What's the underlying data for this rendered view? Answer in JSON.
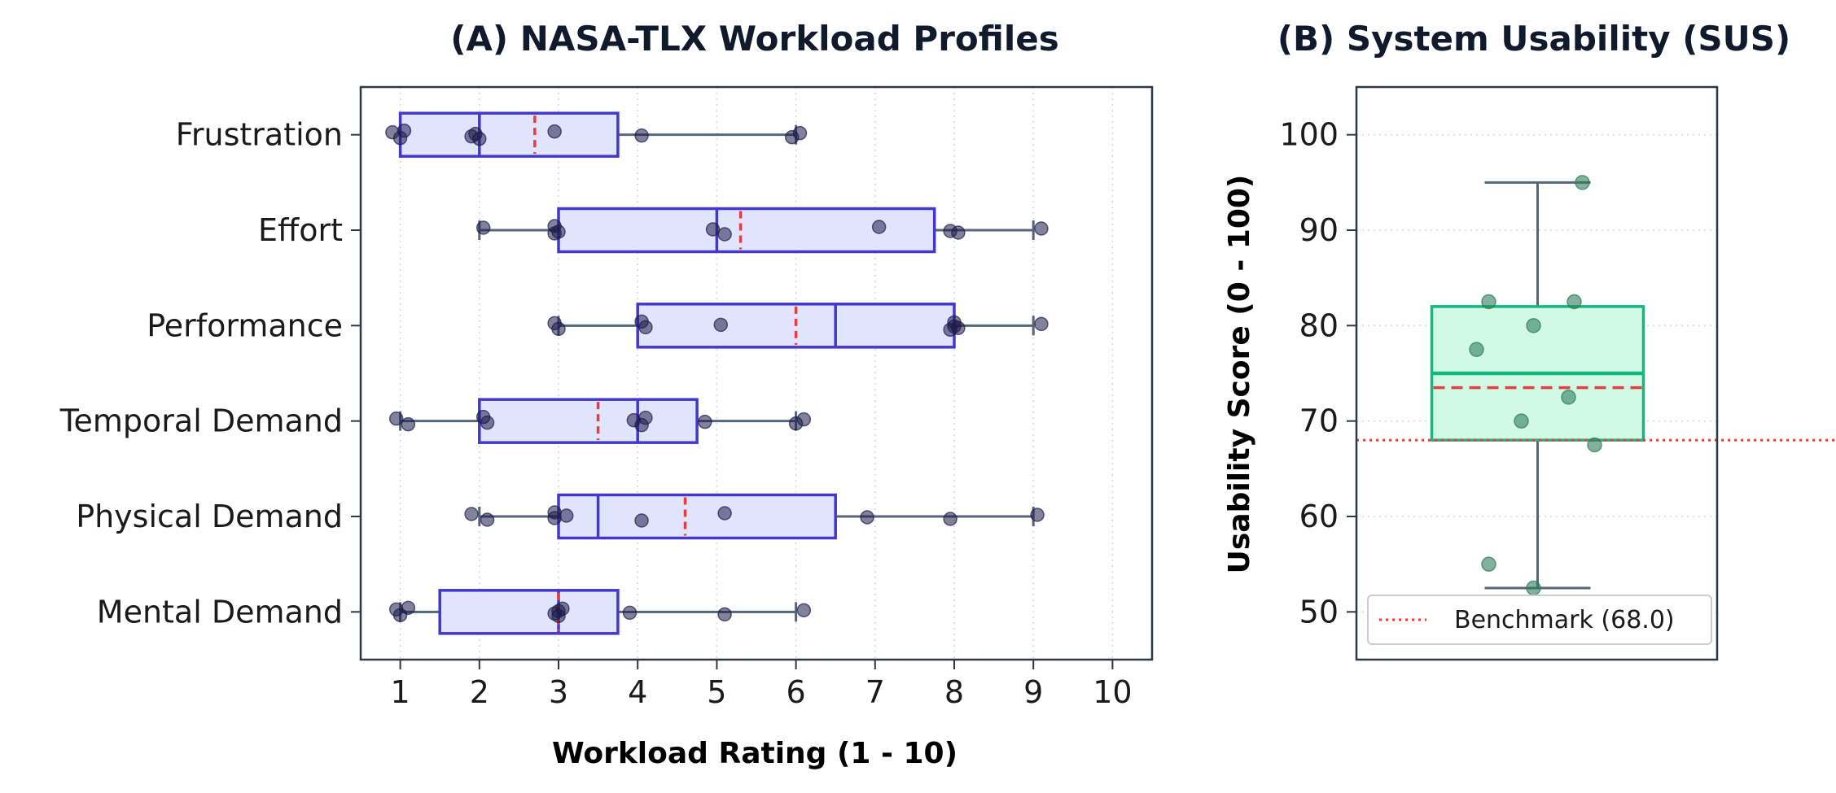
{
  "chart_data": [
    {
      "type": "box",
      "title": "(A) NASA-TLX Workload Profiles",
      "xlabel": "Workload Rating (1 - 10)",
      "ylabel": "",
      "orientation": "horizontal",
      "xlim": [
        0.5,
        10.5
      ],
      "xticks": [
        1,
        2,
        3,
        4,
        5,
        6,
        7,
        8,
        9,
        10
      ],
      "grid": "x dotted",
      "mean_line_color": "#e53e3e",
      "box_color": "#4338ca",
      "box_fill": "#e0e4fd",
      "point_color": "#1e1b4b",
      "categories": [
        "Mental Demand",
        "Physical Demand",
        "Temporal Demand",
        "Performance",
        "Effort",
        "Frustration"
      ],
      "series": [
        {
          "category": "Mental Demand",
          "whisker_low": 1,
          "q1": 1.5,
          "median": 3,
          "q3": 3.75,
          "whisker_high": 6,
          "mean": 3.0,
          "points": [
            0.95,
            1.0,
            1.1,
            2.95,
            3.0,
            3.0,
            3.05,
            3.9,
            5.1,
            6.1
          ]
        },
        {
          "category": "Physical Demand",
          "whisker_low": 2,
          "q1": 3,
          "median": 3.5,
          "q3": 6.5,
          "whisker_high": 9,
          "mean": 4.6,
          "points": [
            1.9,
            2.1,
            2.95,
            2.95,
            3.1,
            4.05,
            5.1,
            6.9,
            7.95,
            9.05
          ]
        },
        {
          "category": "Temporal Demand",
          "whisker_low": 1,
          "q1": 2,
          "median": 4,
          "q3": 4.75,
          "whisker_high": 6,
          "mean": 3.5,
          "points": [
            0.95,
            1.1,
            2.05,
            2.1,
            3.95,
            4.05,
            4.1,
            4.85,
            6.0,
            6.1
          ]
        },
        {
          "category": "Performance",
          "whisker_low": 3,
          "q1": 4,
          "median": 6.5,
          "q3": 8,
          "whisker_high": 9,
          "mean": 6.0,
          "points": [
            2.95,
            3.0,
            4.05,
            4.1,
            5.05,
            7.95,
            8.0,
            8.0,
            8.05,
            9.1
          ]
        },
        {
          "category": "Effort",
          "whisker_low": 2,
          "q1": 3,
          "median": 5,
          "q3": 7.75,
          "whisker_high": 9,
          "mean": 5.3,
          "points": [
            2.05,
            2.95,
            2.95,
            3.0,
            4.95,
            5.1,
            7.05,
            7.95,
            8.05,
            9.1
          ]
        },
        {
          "category": "Frustration",
          "whisker_low": 1,
          "q1": 1,
          "median": 2,
          "q3": 3.75,
          "whisker_high": 6,
          "mean": 2.7,
          "points": [
            0.9,
            1.0,
            1.05,
            1.9,
            1.95,
            2.0,
            2.95,
            4.05,
            5.95,
            6.05
          ]
        }
      ]
    },
    {
      "type": "box",
      "title": "(B) System Usability (SUS)",
      "xlabel": "",
      "ylabel": "Usability Score (0 - 100)",
      "orientation": "vertical",
      "ylim": [
        45,
        105
      ],
      "yticks": [
        50,
        60,
        70,
        80,
        90,
        100
      ],
      "grid": "y dotted",
      "box_color": "#10b981",
      "box_fill": "#d1fae5",
      "point_color": "#2f7d5c",
      "mean_line_color": "#e53e3e",
      "whisker_low": 52.5,
      "q1": 68,
      "median": 75,
      "q3": 82,
      "whisker_high": 95,
      "mean": 73.5,
      "points": [
        95,
        82.5,
        82.5,
        80,
        77.5,
        72.5,
        70,
        67.5,
        55,
        52.5
      ],
      "benchmark": {
        "value": 68.0,
        "label": "Benchmark (68.0)",
        "color": "#e53e3e"
      },
      "legend_position": "lower-left"
    }
  ]
}
